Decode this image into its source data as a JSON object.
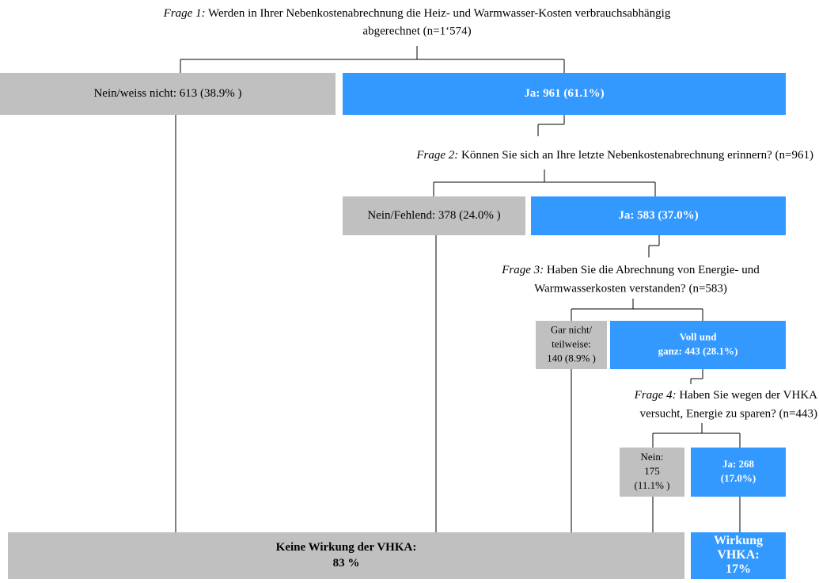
{
  "questions": [
    {
      "label": "Frage 1:",
      "lines": [
        "Werden in Ihrer Nebenkostenabrechnung die Heiz- und Warmwasser-Kosten verbrauchsabhängig",
        "abgerechnet (n=1‘574)"
      ]
    },
    {
      "label": "Frage 2:",
      "lines": [
        "Können Sie sich an Ihre letzte Nebenkostenabrechnung erinnern? (n=961)"
      ]
    },
    {
      "label": "Frage 3:",
      "lines": [
        "Haben Sie die Abrechnung von Energie- und",
        "Warmwasserkosten verstanden? (n=583)"
      ]
    },
    {
      "label": "Frage 4:",
      "lines": [
        "Haben Sie wegen der VHKA",
        "versucht, Energie zu sparen? (n=443)"
      ]
    }
  ],
  "nodes": [
    {
      "lines": [
        "Nein/weiss nicht: 613 (38.9% )"
      ]
    },
    {
      "lines": [
        "Ja: 961 (61.1%)"
      ]
    },
    {
      "lines": [
        "Nein/Fehlend: 378 (24.0% )"
      ]
    },
    {
      "lines": [
        "Ja: 583 (37.0%)"
      ]
    },
    {
      "lines": [
        "Gar nicht/",
        "teilweise:",
        "140 (8.9% )"
      ]
    },
    {
      "lines": [
        "Voll und",
        "ganz: 443 (28.1%)"
      ]
    },
    {
      "lines": [
        "Nein:",
        "175",
        "(11.1% )"
      ]
    },
    {
      "lines": [
        "Ja: 268",
        "(17.0%)"
      ]
    },
    {
      "lines": [
        "Keine Wirkung der VHKA:",
        "83 %"
      ]
    },
    {
      "lines": [
        "Wirkung",
        "VHKA:",
        "17%"
      ]
    }
  ]
}
